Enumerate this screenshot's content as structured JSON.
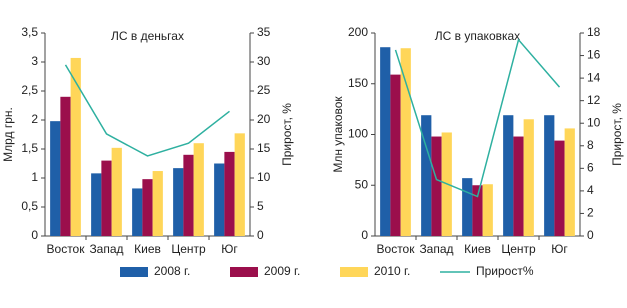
{
  "chart_data": [
    {
      "type": "bar",
      "title": "ЛС в деньгах",
      "y_label": "Млрд грн.",
      "y2_label": "Прирост, %",
      "categories": [
        "Восток",
        "Запад",
        "Киев",
        "Центр",
        "Юг"
      ],
      "series": [
        {
          "name": "2008 г.",
          "color": "#1f5fa8",
          "values": [
            1.98,
            1.08,
            0.82,
            1.17,
            1.25
          ]
        },
        {
          "name": "2009 г.",
          "color": "#9b0f4c",
          "values": [
            2.4,
            1.3,
            0.98,
            1.4,
            1.45
          ]
        },
        {
          "name": "2010 г.",
          "color": "#ffd659",
          "values": [
            3.07,
            1.52,
            1.12,
            1.6,
            1.77
          ]
        },
        {
          "name": "Прирост%",
          "color": "#2eb0a0",
          "type": "line",
          "axis": "y2",
          "values": [
            29.5,
            17.6,
            13.8,
            16,
            21.5
          ]
        }
      ],
      "ylim": [
        0,
        3.5
      ],
      "yticks": [
        0,
        {
          "value": 0.5,
          "label": "0,5"
        },
        1,
        {
          "value": 1.5,
          "label": "1,5"
        },
        2,
        {
          "value": 2.5,
          "label": "2,5"
        },
        3,
        {
          "value": 3.5,
          "label": "3,5"
        }
      ],
      "y2lim": [
        0,
        35
      ],
      "y2ticks": [
        0,
        5,
        10,
        15,
        20,
        25,
        30,
        35
      ]
    },
    {
      "type": "bar",
      "title": "ЛС в упаковках",
      "y_label": "Млн упаковок",
      "y2_label": "Прирост, %",
      "categories": [
        "Восток",
        "Запад",
        "Киев",
        "Центр",
        "Юг"
      ],
      "series": [
        {
          "name": "2008 г.",
          "color": "#1f5fa8",
          "values": [
            186,
            119,
            57,
            119,
            119
          ]
        },
        {
          "name": "2009 г.",
          "color": "#9b0f4c",
          "values": [
            159,
            98,
            50,
            98,
            94
          ]
        },
        {
          "name": "2010 г.",
          "color": "#ffd659",
          "values": [
            185,
            102,
            51,
            115,
            106
          ]
        },
        {
          "name": "Прирост%",
          "color": "#2eb0a0",
          "type": "line",
          "axis": "y2",
          "values": [
            16.5,
            5.0,
            3.5,
            17.4,
            13.2
          ]
        }
      ],
      "ylim": [
        0,
        200
      ],
      "yticks": [
        0,
        50,
        100,
        150,
        200
      ],
      "y2lim": [
        0,
        18
      ],
      "y2ticks": [
        0,
        2,
        4,
        6,
        8,
        10,
        12,
        14,
        16,
        18
      ]
    }
  ]
}
